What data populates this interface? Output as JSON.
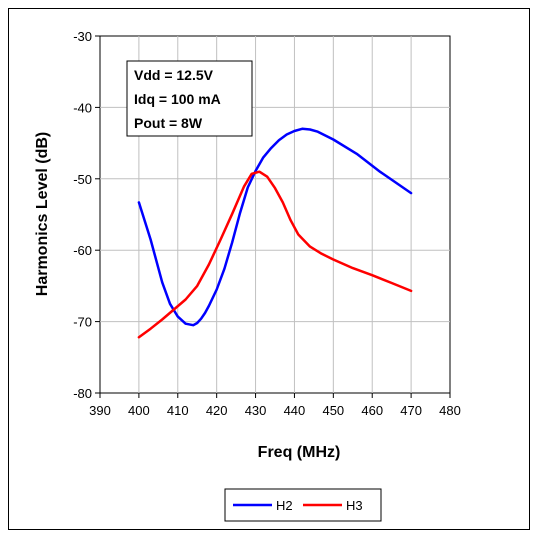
{
  "chart_data": {
    "type": "line",
    "title": "",
    "xlabel": "Freq (MHz)",
    "ylabel": "Harmonics Level (dB)",
    "xlim": [
      390,
      480
    ],
    "ylim": [
      -80,
      -30
    ],
    "xticks": [
      390,
      400,
      410,
      420,
      430,
      440,
      450,
      460,
      470,
      480
    ],
    "yticks": [
      -30,
      -40,
      -50,
      -60,
      -70,
      -80
    ],
    "grid": true,
    "legend_position": "bottom",
    "annotations": [
      "Vdd = 12.5V",
      "Idq = 100 mA",
      "Pout = 8W"
    ],
    "series": [
      {
        "name": "H2",
        "color": "#0000ff",
        "x": [
          400,
          403,
          406,
          408,
          410,
          412,
          414,
          415,
          416,
          417,
          418,
          420,
          422,
          424,
          426,
          428,
          430,
          432,
          434,
          436,
          438,
          440,
          442,
          444,
          446,
          450,
          456,
          462,
          470
        ],
        "y": [
          -53.3,
          -58.5,
          -64.5,
          -67.5,
          -69.3,
          -70.3,
          -70.5,
          -70.2,
          -69.6,
          -68.8,
          -67.8,
          -65.5,
          -62.6,
          -58.9,
          -54.8,
          -51.2,
          -48.9,
          -47.0,
          -45.7,
          -44.6,
          -43.8,
          -43.3,
          -43.0,
          -43.1,
          -43.4,
          -44.5,
          -46.5,
          -49.0,
          -52.0
        ]
      },
      {
        "name": "H3",
        "color": "#ff0000",
        "x": [
          400,
          403,
          406,
          409,
          412,
          415,
          418,
          421,
          424,
          427,
          429,
          431,
          433,
          435,
          437,
          439,
          441,
          444,
          447,
          450,
          455,
          460,
          465,
          470
        ],
        "y": [
          -72.2,
          -71.0,
          -69.7,
          -68.3,
          -66.9,
          -65.0,
          -62.0,
          -58.5,
          -54.9,
          -51.1,
          -49.3,
          -49.0,
          -49.7,
          -51.3,
          -53.3,
          -55.8,
          -57.8,
          -59.5,
          -60.5,
          -61.3,
          -62.5,
          -63.5,
          -64.6,
          -65.7
        ]
      }
    ]
  }
}
